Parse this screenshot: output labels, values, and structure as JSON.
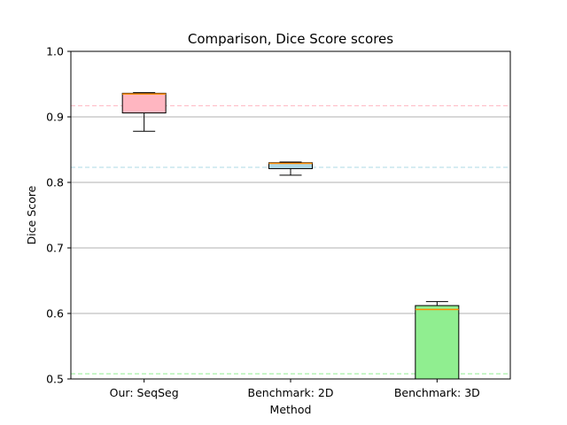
{
  "chart_data": {
    "type": "box",
    "title": "Comparison, Dice Score scores",
    "xlabel": "Method",
    "ylabel": "Dice Score",
    "ylim": [
      0.5,
      1.0
    ],
    "yticks": [
      0.5,
      0.6,
      0.7,
      0.8,
      0.9,
      1.0
    ],
    "ytick_labels": [
      "0.5",
      "0.6",
      "0.7",
      "0.8",
      "0.9",
      "1.0"
    ],
    "grid": "horizontal",
    "categories": [
      "Our: SeqSeg",
      "Benchmark: 2D",
      "Benchmark: 3D"
    ],
    "boxes": [
      {
        "whisker_low": 0.878,
        "q1": 0.906,
        "median": 0.935,
        "q3": 0.936,
        "whisker_high": 0.937,
        "color": "#ffb6c1"
      },
      {
        "whisker_low": 0.811,
        "q1": 0.821,
        "median": 0.829,
        "q3": 0.83,
        "whisker_high": 0.831,
        "color": "#add8e6"
      },
      {
        "whisker_low": 0.5,
        "q1": 0.5,
        "median": 0.606,
        "q3": 0.612,
        "whisker_high": 0.618,
        "color": "#90ee90"
      }
    ],
    "reference_lines": [
      {
        "value": 0.917,
        "color": "#ffb6c1"
      },
      {
        "value": 0.823,
        "color": "#add8e6"
      },
      {
        "value": 0.508,
        "color": "#90ee90"
      }
    ],
    "median_color": "#ff8c00"
  }
}
